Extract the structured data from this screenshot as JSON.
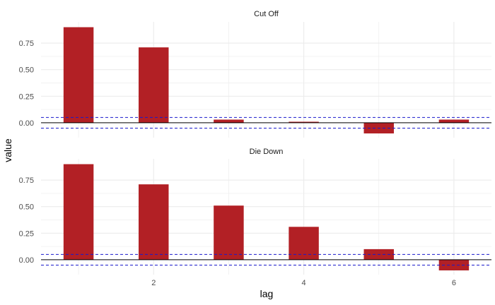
{
  "chart_data": {
    "type": "bar",
    "xlabel": "lag",
    "ylabel": "value",
    "x_ticks": [
      2,
      4,
      6
    ],
    "y_ticks": [
      0,
      0.25,
      0.5,
      0.75
    ],
    "y_tick_labels": [
      "0.00",
      "0.25",
      "0.50",
      "0.75"
    ],
    "xlim": [
      0.5,
      6.5
    ],
    "ylim": [
      -0.14,
      0.95
    ],
    "grid": true,
    "colors": {
      "bar": "#b22025",
      "threshold": "#1a1acc",
      "zero_line": "#000000",
      "grid": "#ebebeb"
    },
    "thresholds": [
      0.05,
      -0.05
    ],
    "panels": [
      {
        "title": "Cut Off",
        "x": [
          1,
          2,
          3,
          4,
          5,
          6
        ],
        "values": [
          0.9,
          0.71,
          0.03,
          0.01,
          -0.1,
          0.03
        ]
      },
      {
        "title": "Die Down",
        "x": [
          1,
          2,
          3,
          4,
          5,
          6
        ],
        "values": [
          0.9,
          0.71,
          0.51,
          0.31,
          0.1,
          -0.1
        ]
      }
    ]
  }
}
